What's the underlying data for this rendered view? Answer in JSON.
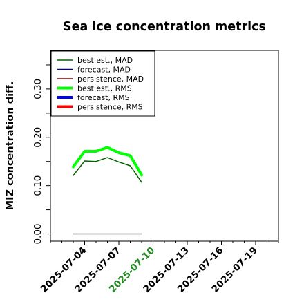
{
  "chart_data": {
    "type": "line",
    "title": "Sea ice concentration metrics",
    "ylabel": "MIZ concentration diff.",
    "xlabel": "",
    "x_ticks": [
      "2025-07-04",
      "2025-07-07",
      "2025-07-10",
      "2025-07-13",
      "2025-07-16",
      "2025-07-19"
    ],
    "highlighted_tick": "2025-07-10",
    "x_range": [
      "2025-07-01",
      "2025-07-21"
    ],
    "y_ticks": [
      "0.00",
      "0.10",
      "0.20",
      "0.30"
    ],
    "ylim": [
      -0.015,
      0.38
    ],
    "grid": false,
    "legend_position": "top-left",
    "series": [
      {
        "name": "best est., MAD",
        "color": "#006400",
        "width": "thin",
        "x": [
          "2025-07-03",
          "2025-07-04",
          "2025-07-05",
          "2025-07-06",
          "2025-07-07",
          "2025-07-08",
          "2025-07-09"
        ],
        "values": [
          0.121,
          0.151,
          0.15,
          0.158,
          0.149,
          0.141,
          0.107
        ]
      },
      {
        "name": "forecast,  MAD",
        "color": "#00008b",
        "width": "thin",
        "x": [],
        "values": []
      },
      {
        "name": "persistence, MAD",
        "color": "#8b0000",
        "width": "thin",
        "x": [],
        "values": []
      },
      {
        "name": "best est., RMS",
        "color": "#00ff00",
        "width": "thick",
        "x": [
          "2025-07-03",
          "2025-07-04",
          "2025-07-05",
          "2025-07-06",
          "2025-07-07",
          "2025-07-08",
          "2025-07-09"
        ],
        "values": [
          0.139,
          0.171,
          0.171,
          0.179,
          0.168,
          0.162,
          0.122
        ]
      },
      {
        "name": "forecast,  RMS",
        "color": "#0000ff",
        "width": "thick",
        "x": [],
        "values": []
      },
      {
        "name": "persistence, RMS",
        "color": "#ff0000",
        "width": "thick",
        "x": [],
        "values": []
      },
      {
        "name": "",
        "color": "#808080",
        "width": "thin",
        "x": [
          "2025-07-03",
          "2025-07-09"
        ],
        "values": [
          0.0,
          0.0
        ]
      }
    ]
  }
}
